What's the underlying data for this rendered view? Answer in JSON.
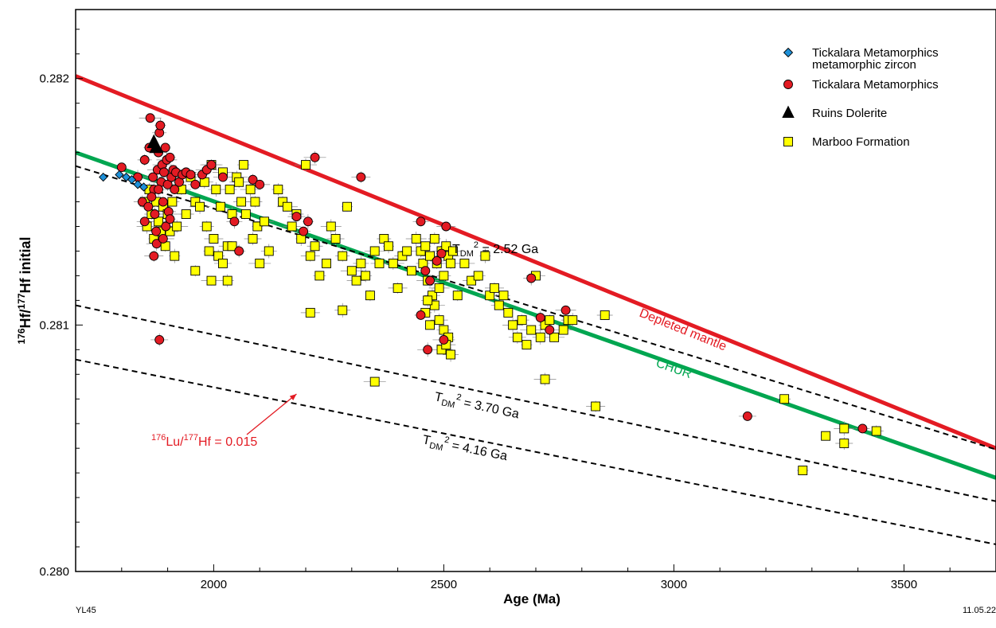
{
  "footer": {
    "left": "YL45",
    "right": "11.05.22"
  },
  "chart_data": {
    "type": "scatter",
    "xlabel": "Age (Ma)",
    "ylabel": "¹⁷⁶Hf/¹⁷⁷Hf initial",
    "ylabel_parts": {
      "sup1": "176",
      "a": "Hf/",
      "sup2": "177",
      "b": "Hf initial"
    },
    "xlim": [
      1700,
      3700
    ],
    "ylim": [
      0.28,
      0.28228
    ],
    "x_ticks": [
      2000,
      2500,
      3000,
      3500
    ],
    "x_tick_labels": [
      "2000",
      "2500",
      "3000",
      "3500"
    ],
    "y_ticks": [
      0.28,
      0.281,
      0.282
    ],
    "y_tick_labels": [
      "0.280",
      "0.281",
      "0.282"
    ],
    "grid": false,
    "legend_position": "top-right",
    "legend": [
      {
        "key": "tickalara_metamorphic_zircon",
        "lines": [
          "Tickalara Metamorphics",
          "metamorphic zircon"
        ],
        "marker": "diamond",
        "color": "#1e90d8"
      },
      {
        "key": "tickalara",
        "lines": [
          "Tickalara Metamorphics"
        ],
        "marker": "circle",
        "color": "#e31b23"
      },
      {
        "key": "ruins",
        "lines": [
          "Ruins Dolerite"
        ],
        "marker": "triangle",
        "color": "#000000"
      },
      {
        "key": "marboo",
        "lines": [
          "Marboo Formation"
        ],
        "marker": "square",
        "color": "#ffff00"
      }
    ],
    "reference_lines": [
      {
        "key": "depleted_mantle",
        "x": [
          1700,
          3700
        ],
        "y": [
          0.28201,
          0.2805
        ],
        "color": "#e31b23",
        "dash": false,
        "label": "Depleted mantle",
        "label_color": "#e31b23"
      },
      {
        "key": "chur",
        "x": [
          1700,
          3700
        ],
        "y": [
          0.2817,
          0.28038
        ],
        "color": "#00a650",
        "dash": false,
        "label": "CHUR",
        "label_color": "#00a650"
      },
      {
        "key": "tdm_252",
        "x": [
          1700,
          3700
        ],
        "y": [
          0.281645,
          0.280495
        ],
        "color": "#000000",
        "dash": true,
        "label_parts": [
          "T",
          "DM",
          "2",
          " = 2.52 Ga"
        ]
      },
      {
        "key": "tdm_370",
        "x": [
          1700,
          3700
        ],
        "y": [
          0.28108,
          0.280285
        ],
        "color": "#000000",
        "dash": true,
        "label_parts": [
          "T",
          "DM",
          "2",
          " = 3.70 Ga"
        ]
      },
      {
        "key": "tdm_416",
        "x": [
          1700,
          3700
        ],
        "y": [
          0.28086,
          0.28011
        ],
        "color": "#000000",
        "dash": true,
        "label_parts": [
          "T",
          "DM",
          "2",
          " = 4.16 Ga"
        ]
      }
    ],
    "annotation": {
      "parts": [
        "176",
        "Lu/",
        "177",
        "Hf = 0.015"
      ],
      "color": "#e31b23",
      "arrow_to": {
        "x": 2180,
        "y": 0.28072
      }
    },
    "series": [
      {
        "key": "tickalara_metamorphic_zircon",
        "points": [
          [
            1760,
            0.2816
          ],
          [
            1795,
            0.28161
          ],
          [
            1810,
            0.2816
          ],
          [
            1822,
            0.28159
          ],
          [
            1835,
            0.28157
          ],
          [
            1848,
            0.28156
          ]
        ]
      },
      {
        "key": "ruins",
        "points": [
          [
            1870,
            0.28174
          ],
          [
            1875,
            0.28172
          ]
        ]
      },
      {
        "key": "tickalara",
        "points": [
          [
            1800,
            0.28164
          ],
          [
            1835,
            0.2816
          ],
          [
            1845,
            0.2815
          ],
          [
            1850,
            0.28167
          ],
          [
            1860,
            0.28172
          ],
          [
            1862,
            0.28184
          ],
          [
            1868,
            0.2816
          ],
          [
            1870,
            0.28155
          ],
          [
            1872,
            0.28145
          ],
          [
            1875,
            0.28138
          ],
          [
            1878,
            0.28163
          ],
          [
            1880,
            0.2817
          ],
          [
            1882,
            0.28178
          ],
          [
            1884,
            0.28181
          ],
          [
            1886,
            0.28158
          ],
          [
            1888,
            0.28165
          ],
          [
            1890,
            0.2815
          ],
          [
            1892,
            0.28162
          ],
          [
            1895,
            0.28172
          ],
          [
            1898,
            0.28167
          ],
          [
            1900,
            0.28157
          ],
          [
            1902,
            0.28146
          ],
          [
            1905,
            0.28168
          ],
          [
            1908,
            0.2816
          ],
          [
            1912,
            0.28163
          ],
          [
            1918,
            0.28162
          ],
          [
            1925,
            0.28158
          ],
          [
            1932,
            0.28161
          ],
          [
            1940,
            0.28162
          ],
          [
            1950,
            0.28161
          ],
          [
            1960,
            0.28157
          ],
          [
            1975,
            0.28161
          ],
          [
            1985,
            0.28163
          ],
          [
            1995,
            0.28165
          ],
          [
            1850,
            0.28142
          ],
          [
            1858,
            0.28148
          ],
          [
            1865,
            0.28152
          ],
          [
            1876,
            0.28133
          ],
          [
            1882,
            0.28094
          ],
          [
            1896,
            0.2814
          ],
          [
            1905,
            0.28143
          ],
          [
            1915,
            0.28155
          ],
          [
            2020,
            0.2816
          ],
          [
            2045,
            0.28142
          ],
          [
            2055,
            0.2813
          ],
          [
            2085,
            0.28159
          ],
          [
            2100,
            0.28157
          ],
          [
            2180,
            0.28144
          ],
          [
            2195,
            0.28138
          ],
          [
            2205,
            0.28142
          ],
          [
            2220,
            0.28168
          ],
          [
            2320,
            0.2816
          ],
          [
            2450,
            0.28142
          ],
          [
            2450,
            0.28104
          ],
          [
            2460,
            0.28122
          ],
          [
            2465,
            0.2809
          ],
          [
            2470,
            0.28118
          ],
          [
            2485,
            0.28126
          ],
          [
            2495,
            0.28129
          ],
          [
            2500,
            0.28094
          ],
          [
            2505,
            0.2814
          ],
          [
            2690,
            0.28119
          ],
          [
            2710,
            0.28103
          ],
          [
            2730,
            0.28098
          ],
          [
            2765,
            0.28106
          ],
          [
            3160,
            0.28063
          ],
          [
            3410,
            0.28058
          ],
          [
            1880,
            0.28155
          ],
          [
            1890,
            0.28135
          ],
          [
            1870,
            0.28128
          ]
        ]
      },
      {
        "key": "marboo",
        "points": [
          [
            1850,
            0.2815
          ],
          [
            1855,
            0.2814
          ],
          [
            1860,
            0.28155
          ],
          [
            1865,
            0.28145
          ],
          [
            1870,
            0.28135
          ],
          [
            1875,
            0.2815
          ],
          [
            1880,
            0.28142
          ],
          [
            1885,
            0.28138
          ],
          [
            1890,
            0.28148
          ],
          [
            1895,
            0.28132
          ],
          [
            1900,
            0.28145
          ],
          [
            1905,
            0.28138
          ],
          [
            1910,
            0.2815
          ],
          [
            1915,
            0.28128
          ],
          [
            1920,
            0.2814
          ],
          [
            1930,
            0.28155
          ],
          [
            1940,
            0.28145
          ],
          [
            1950,
            0.2816
          ],
          [
            1960,
            0.2815
          ],
          [
            1970,
            0.28148
          ],
          [
            1980,
            0.28158
          ],
          [
            1985,
            0.2814
          ],
          [
            1990,
            0.2813
          ],
          [
            1995,
            0.28165
          ],
          [
            2000,
            0.28135
          ],
          [
            2005,
            0.28155
          ],
          [
            2010,
            0.28128
          ],
          [
            2015,
            0.28148
          ],
          [
            2020,
            0.28162
          ],
          [
            2030,
            0.28132
          ],
          [
            2035,
            0.28155
          ],
          [
            2040,
            0.28145
          ],
          [
            2050,
            0.2816
          ],
          [
            2055,
            0.28158
          ],
          [
            2060,
            0.2815
          ],
          [
            2065,
            0.28165
          ],
          [
            2070,
            0.28145
          ],
          [
            2080,
            0.28155
          ],
          [
            2085,
            0.28135
          ],
          [
            2090,
            0.2815
          ],
          [
            2095,
            0.2814
          ],
          [
            2100,
            0.28125
          ],
          [
            2110,
            0.28142
          ],
          [
            2120,
            0.2813
          ],
          [
            2140,
            0.28155
          ],
          [
            2150,
            0.2815
          ],
          [
            2160,
            0.28148
          ],
          [
            2170,
            0.2814
          ],
          [
            2180,
            0.28145
          ],
          [
            2190,
            0.28135
          ],
          [
            2200,
            0.28165
          ],
          [
            2210,
            0.28128
          ],
          [
            2220,
            0.28132
          ],
          [
            2230,
            0.2812
          ],
          [
            2245,
            0.28125
          ],
          [
            2255,
            0.2814
          ],
          [
            2265,
            0.28135
          ],
          [
            2280,
            0.28128
          ],
          [
            2290,
            0.28148
          ],
          [
            2300,
            0.28122
          ],
          [
            2310,
            0.28118
          ],
          [
            2320,
            0.28125
          ],
          [
            2330,
            0.2812
          ],
          [
            2340,
            0.28112
          ],
          [
            2350,
            0.2813
          ],
          [
            2360,
            0.28125
          ],
          [
            2370,
            0.28135
          ],
          [
            2380,
            0.28132
          ],
          [
            2390,
            0.28125
          ],
          [
            2400,
            0.28115
          ],
          [
            2410,
            0.28128
          ],
          [
            2420,
            0.2813
          ],
          [
            2430,
            0.28122
          ],
          [
            2440,
            0.28135
          ],
          [
            2450,
            0.2813
          ],
          [
            2455,
            0.28125
          ],
          [
            2460,
            0.28132
          ],
          [
            2465,
            0.28118
          ],
          [
            2470,
            0.28128
          ],
          [
            2475,
            0.28112
          ],
          [
            2480,
            0.28135
          ],
          [
            2485,
            0.28125
          ],
          [
            2490,
            0.28115
          ],
          [
            2495,
            0.2813
          ],
          [
            2500,
            0.2812
          ],
          [
            2505,
            0.28132
          ],
          [
            2510,
            0.28128
          ],
          [
            2515,
            0.28125
          ],
          [
            2520,
            0.2813
          ],
          [
            2460,
            0.28105
          ],
          [
            2470,
            0.281
          ],
          [
            2480,
            0.28108
          ],
          [
            2490,
            0.28102
          ],
          [
            2500,
            0.28098
          ],
          [
            2510,
            0.28095
          ],
          [
            2495,
            0.2809
          ],
          [
            2505,
            0.28092
          ],
          [
            2515,
            0.28088
          ],
          [
            2465,
            0.2811
          ],
          [
            2530,
            0.28112
          ],
          [
            2545,
            0.28125
          ],
          [
            2560,
            0.28118
          ],
          [
            2575,
            0.2812
          ],
          [
            2590,
            0.28128
          ],
          [
            2600,
            0.28112
          ],
          [
            2610,
            0.28115
          ],
          [
            2620,
            0.28108
          ],
          [
            2630,
            0.28112
          ],
          [
            2640,
            0.28105
          ],
          [
            2650,
            0.281
          ],
          [
            2660,
            0.28095
          ],
          [
            2670,
            0.28102
          ],
          [
            2680,
            0.28092
          ],
          [
            2690,
            0.28098
          ],
          [
            2700,
            0.2812
          ],
          [
            2710,
            0.28095
          ],
          [
            2720,
            0.281
          ],
          [
            2730,
            0.28102
          ],
          [
            2740,
            0.28095
          ],
          [
            2760,
            0.28098
          ],
          [
            2770,
            0.28102
          ],
          [
            2780,
            0.28102
          ],
          [
            2720,
            0.28078
          ],
          [
            2830,
            0.28067
          ],
          [
            2850,
            0.28104
          ],
          [
            3240,
            0.2807
          ],
          [
            3330,
            0.28055
          ],
          [
            3370,
            0.28058
          ],
          [
            3370,
            0.28052
          ],
          [
            3440,
            0.28057
          ],
          [
            3280,
            0.28041
          ],
          [
            2350,
            0.28077
          ],
          [
            2210,
            0.28105
          ],
          [
            2280,
            0.28106
          ],
          [
            2030,
            0.28118
          ],
          [
            1960,
            0.28122
          ],
          [
            1995,
            0.28118
          ],
          [
            2020,
            0.28125
          ],
          [
            2040,
            0.28132
          ]
        ]
      }
    ]
  }
}
